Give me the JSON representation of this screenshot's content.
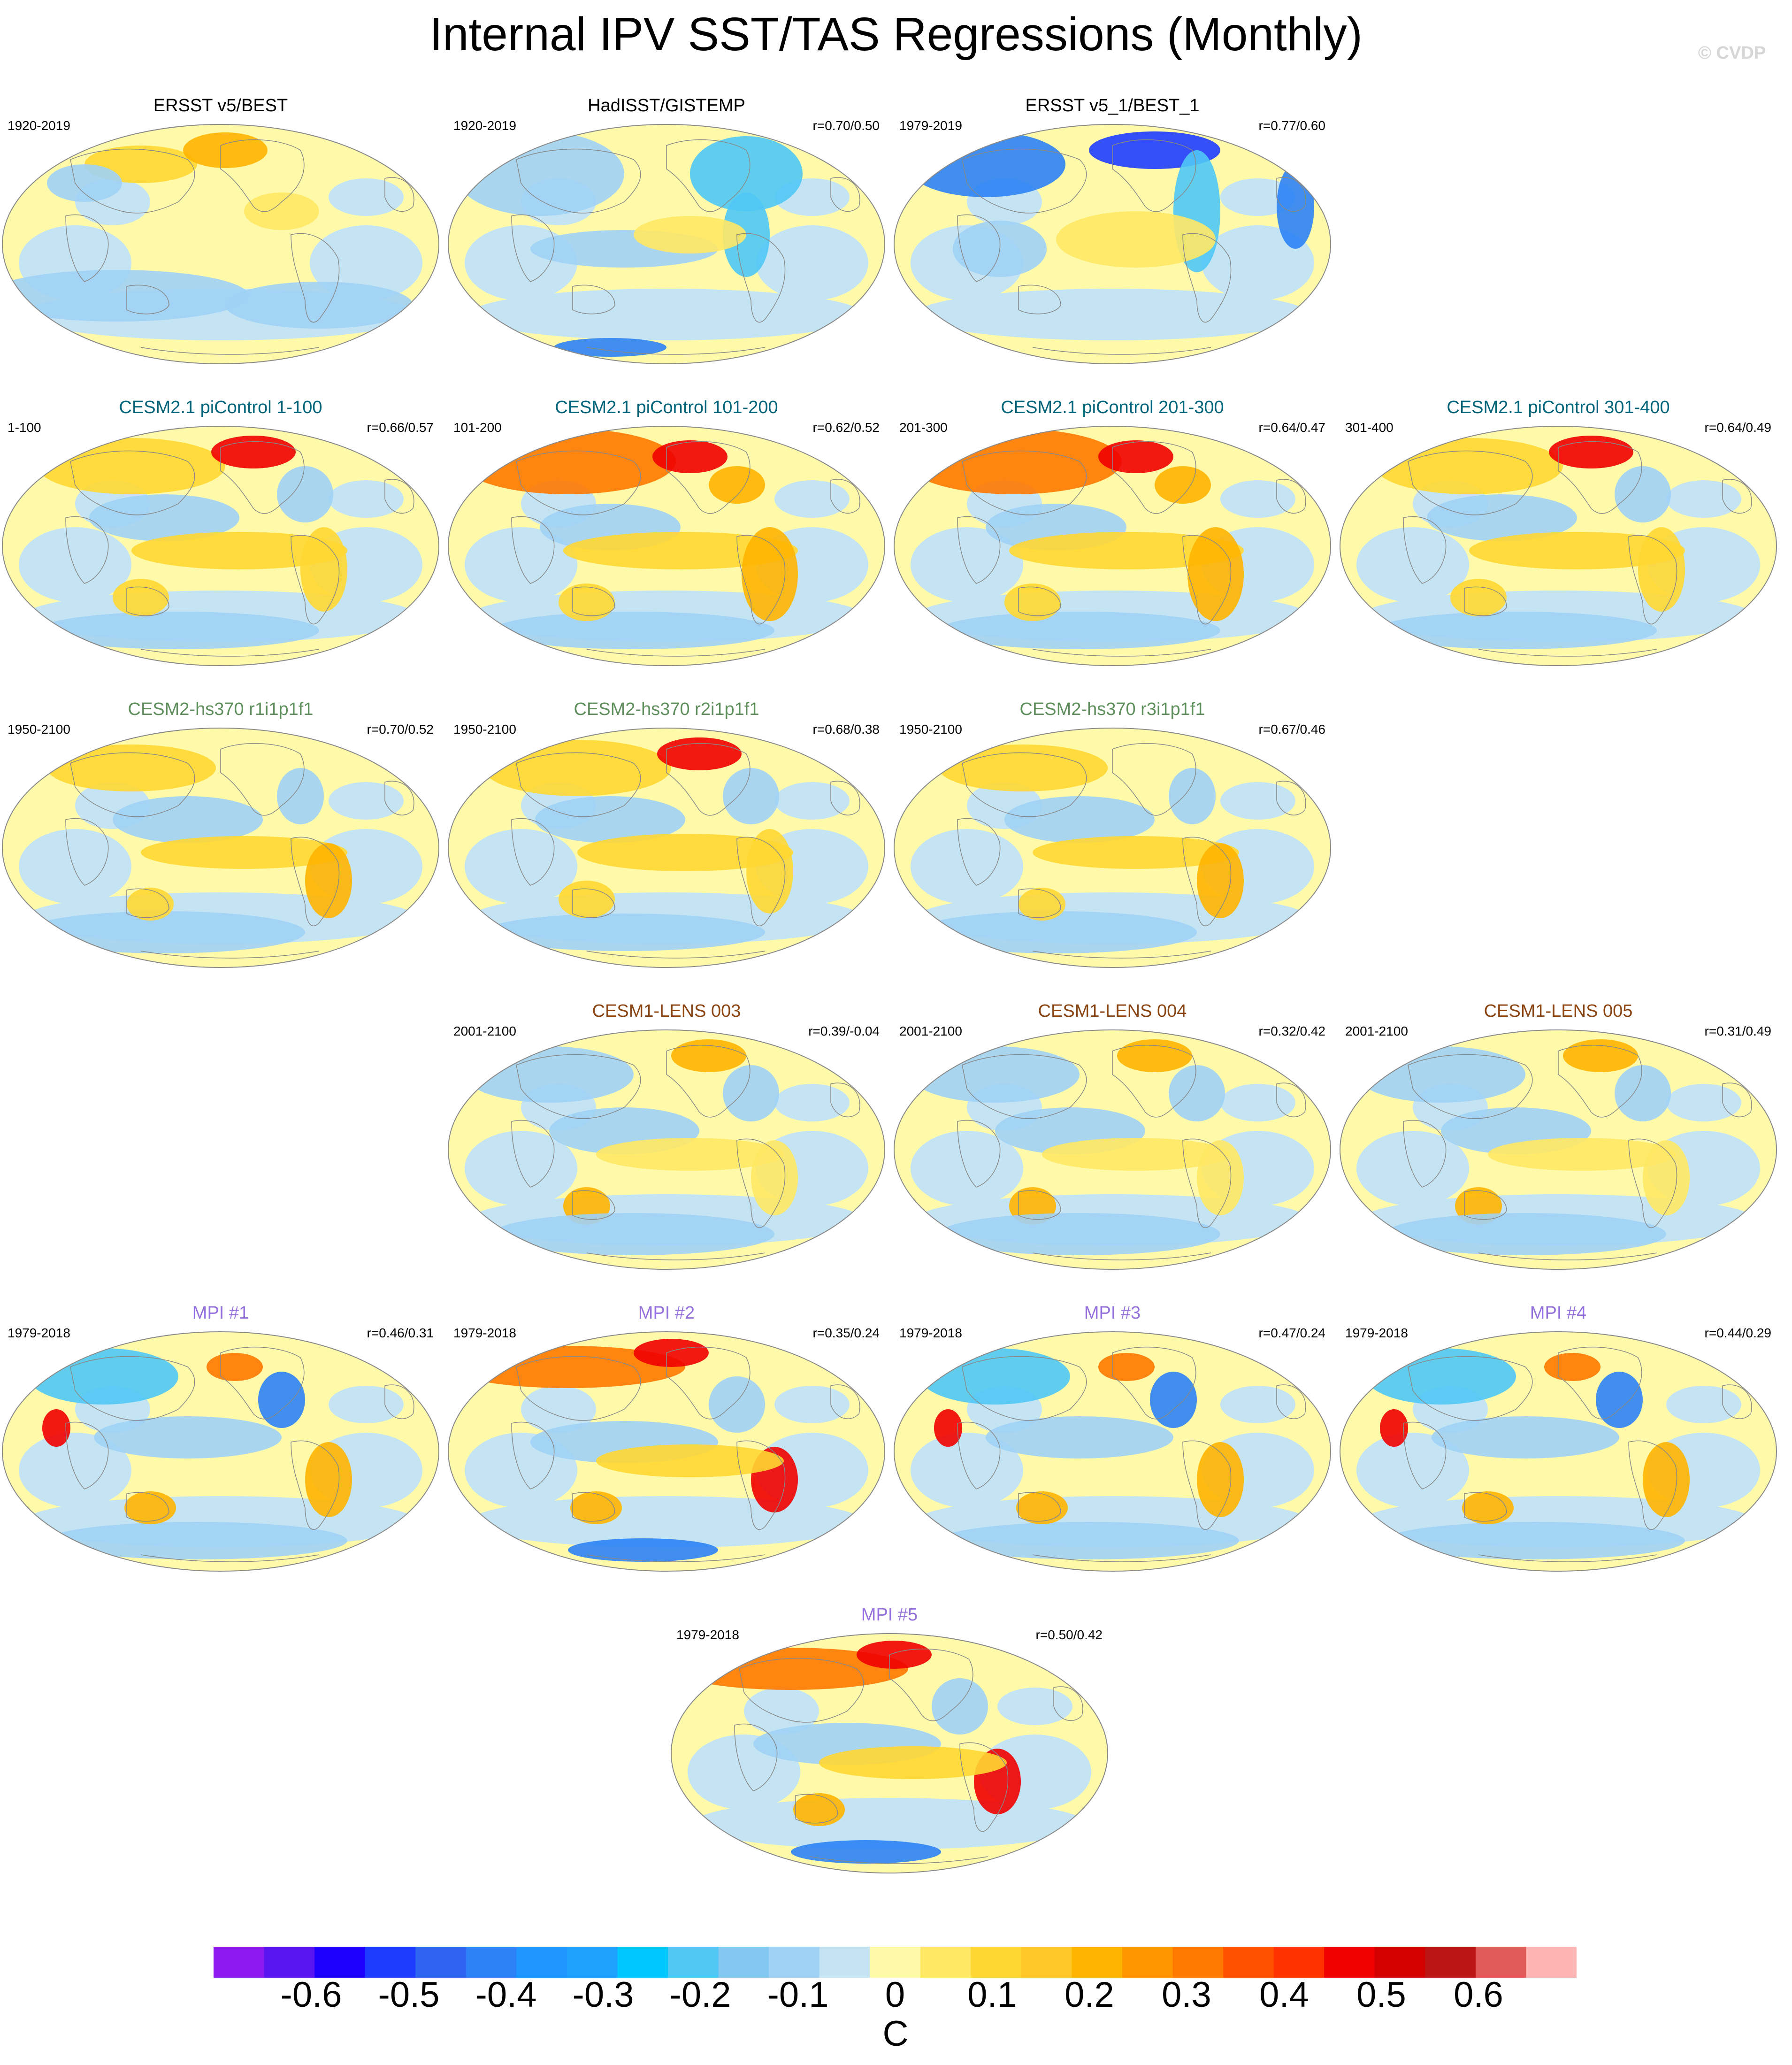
{
  "title": "Internal IPV SST/TAS Regressions (Monthly)",
  "watermark": "© CVDP",
  "colors": {
    "observations": "#000000",
    "cesm21_picontrol": "#00657a",
    "cesm2_hs370": "#5f8f5c",
    "cesm1_lens": "#8b4513",
    "mpi": "#9370db",
    "land_outline": "#888888"
  },
  "panels": [
    {
      "title": "ERSST v5/BEST",
      "group": "observations",
      "period": "1920-2019",
      "stat": "",
      "pattern": "obs1"
    },
    {
      "title": "HadISST/GISTEMP",
      "group": "observations",
      "period": "1920-2019",
      "stat": "r=0.70/0.50",
      "pattern": "obs2"
    },
    {
      "title": "ERSST v5_1/BEST_1",
      "group": "observations",
      "period": "1979-2019",
      "stat": "r=0.77/0.60",
      "pattern": "obs3"
    },
    {
      "title": "CESM2.1 piControl 1-100",
      "group": "cesm21_picontrol",
      "period": "1-100",
      "stat": "r=0.66/0.57",
      "pattern": "warm"
    },
    {
      "title": "CESM2.1 piControl 101-200",
      "group": "cesm21_picontrol",
      "period": "101-200",
      "stat": "r=0.62/0.52",
      "pattern": "hot"
    },
    {
      "title": "CESM2.1 piControl 201-300",
      "group": "cesm21_picontrol",
      "period": "201-300",
      "stat": "r=0.64/0.47",
      "pattern": "hot"
    },
    {
      "title": "CESM2.1 piControl 301-400",
      "group": "cesm21_picontrol",
      "period": "301-400",
      "stat": "r=0.64/0.49",
      "pattern": "warm"
    },
    {
      "title": "CESM2-hs370 r1i1p1f1",
      "group": "cesm2_hs370",
      "period": "1950-2100",
      "stat": "r=0.70/0.52",
      "pattern": "mild"
    },
    {
      "title": "CESM2-hs370 r2i1p1f1",
      "group": "cesm2_hs370",
      "period": "1950-2100",
      "stat": "r=0.68/0.38",
      "pattern": "warm"
    },
    {
      "title": "CESM2-hs370 r3i1p1f1",
      "group": "cesm2_hs370",
      "period": "1950-2100",
      "stat": "r=0.67/0.46",
      "pattern": "mild"
    },
    {
      "title": "CESM1-LENS 003",
      "group": "cesm1_lens",
      "period": "2001-2100",
      "stat": "r=0.39/-0.04",
      "pattern": "mixed"
    },
    {
      "title": "CESM1-LENS 004",
      "group": "cesm1_lens",
      "period": "2001-2100",
      "stat": "r=0.32/0.42",
      "pattern": "mixed"
    },
    {
      "title": "CESM1-LENS 005",
      "group": "cesm1_lens",
      "period": "2001-2100",
      "stat": "r=0.31/0.49",
      "pattern": "mixed"
    },
    {
      "title": "MPI #1",
      "group": "mpi",
      "period": "1979-2018",
      "stat": "r=0.46/0.31",
      "pattern": "mpi"
    },
    {
      "title": "MPI #2",
      "group": "mpi",
      "period": "1979-2018",
      "stat": "r=0.35/0.24",
      "pattern": "mpihot"
    },
    {
      "title": "MPI #3",
      "group": "mpi",
      "period": "1979-2018",
      "stat": "r=0.47/0.24",
      "pattern": "mpi"
    },
    {
      "title": "MPI #4",
      "group": "mpi",
      "period": "1979-2018",
      "stat": "r=0.44/0.29",
      "pattern": "mpi"
    },
    {
      "title": "MPI #5",
      "group": "mpi",
      "period": "1979-2018",
      "stat": "r=0.50/0.42",
      "pattern": "mpihot"
    }
  ],
  "colorbar": {
    "units": "C",
    "tick_labels": [
      "-0.6",
      "-0.5",
      "-0.4",
      "-0.3",
      "-0.2",
      "-0.1",
      "0",
      "0.1",
      "0.2",
      "0.3",
      "0.4",
      "0.5",
      "0.6"
    ],
    "colors": [
      "#8c1aef",
      "#5a14f0",
      "#1e00ff",
      "#1e3cff",
      "#2e64f0",
      "#2d82f5",
      "#1e96ff",
      "#1ea0ff",
      "#00c8ff",
      "#50c8f5",
      "#82c8f0",
      "#a0d2f5",
      "#c4e4f4",
      "#fffaaa",
      "#ffe864",
      "#ffd732",
      "#ffc828",
      "#ffb400",
      "#ff9600",
      "#ff7800",
      "#ff5000",
      "#ff3200",
      "#f00000",
      "#d20000",
      "#bb1515",
      "#e15b5b",
      "#ffb4b4"
    ]
  }
}
